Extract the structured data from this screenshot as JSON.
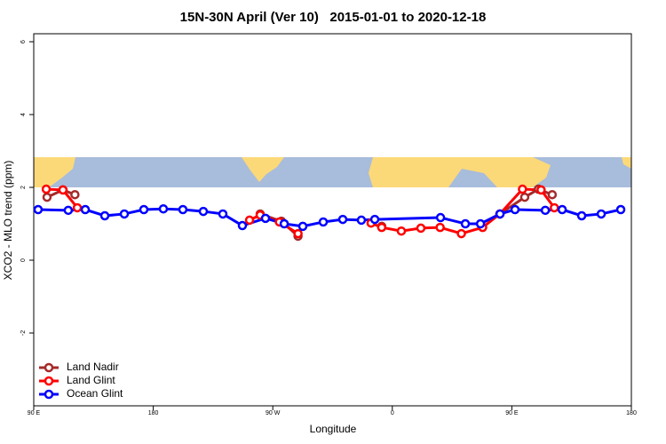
{
  "chart_data": {
    "type": "line",
    "title": "15N-30N April (Ver 10)   2015-01-01 to 2020-12-18",
    "x_label": "Longitude",
    "y_label": "XCO2 - MLO trend (ppm)",
    "xlim": [
      90,
      540
    ],
    "ylim": [
      -4,
      6.22
    ],
    "xticks": [
      {
        "value": 90,
        "label": "90 E"
      },
      180,
      {
        "value": 270,
        "label": "90 W"
      },
      {
        "value": 360,
        "label": "0"
      },
      {
        "value": 450,
        "label": "90 E"
      },
      {
        "value": 540,
        "label": "180"
      }
    ],
    "yticks": [
      -2,
      0,
      2,
      4,
      6
    ],
    "legend": "bottom-left",
    "series": [
      {
        "name": "Land Nadir",
        "color": "#a52a2a",
        "x": [
          100,
          112,
          121,
          null,
          260.5,
          276.5,
          289,
          null,
          352,
          null,
          441,
          459.7,
          470,
          480.4
        ],
        "values": [
          1.73,
          1.93,
          1.8,
          null,
          1.27,
          1.07,
          0.66,
          null,
          0.93,
          null,
          1.27,
          1.73,
          1.95,
          1.8
        ]
      },
      {
        "name": "Land Glint",
        "color": "#ff0000",
        "x": [
          99.4,
          112,
          122.8,
          null,
          252.5,
          260.5,
          275,
          289,
          null,
          344,
          352,
          366.8,
          381.5,
          396,
          412,
          428,
          441,
          458,
          472,
          482
        ],
        "values": [
          1.95,
          1.93,
          1.44,
          null,
          1.1,
          1.24,
          1.05,
          0.73,
          null,
          1.02,
          0.9,
          0.8,
          0.88,
          0.9,
          0.73,
          0.9,
          1.27,
          1.95,
          1.93,
          1.44
        ]
      },
      {
        "name": "Ocean Glint",
        "color": "#0000ff",
        "x": [
          93.3,
          116,
          128.8,
          143.5,
          158.2,
          172.9,
          187.6,
          202.3,
          217.7,
          232.4,
          247.1,
          264.5,
          278.6,
          292.6,
          308,
          322.7,
          336.7,
          346.8,
          396.3,
          415,
          426.4,
          441.1,
          452.4,
          475.2,
          487.9,
          502.6,
          517.3,
          532
        ],
        "values": [
          1.39,
          1.37,
          1.39,
          1.22,
          1.27,
          1.39,
          1.41,
          1.39,
          1.34,
          1.27,
          0.95,
          1.15,
          1.0,
          0.93,
          1.05,
          1.12,
          1.1,
          1.12,
          1.17,
          1.0,
          1.0,
          1.27,
          1.39,
          1.37,
          1.39,
          1.22,
          1.27,
          1.39
        ]
      }
    ]
  }
}
